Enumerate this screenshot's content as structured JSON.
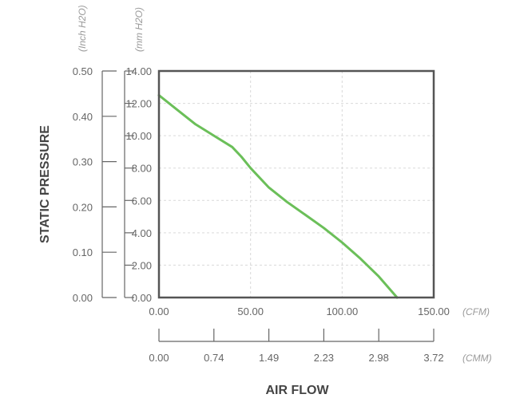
{
  "chart_data": {
    "type": "line",
    "title": "",
    "xlabel": "AIR FLOW",
    "ylabel": "STATIC PRESSURE",
    "x_primary_unit": "(CFM)",
    "x_secondary_unit": "(CMM)",
    "y_primary_unit": "(mm H2O)",
    "y_secondary_unit": "(Inch H2O)",
    "xlim": [
      0,
      150
    ],
    "ylim": [
      0,
      14
    ],
    "x_ticks": [
      "0.00",
      "50.00",
      "100.00",
      "150.00"
    ],
    "x_secondary_ticks": [
      "0.00",
      "0.74",
      "1.49",
      "2.23",
      "2.98",
      "3.72"
    ],
    "y_ticks": [
      "0.00",
      "2.00",
      "4.00",
      "6.00",
      "8.00",
      "10.00",
      "12.00",
      "14.00"
    ],
    "y_secondary_ticks": [
      "0.00",
      "0.10",
      "0.20",
      "0.30",
      "0.40",
      "0.50"
    ],
    "grid": true,
    "series": [
      {
        "color": "#6bbf59",
        "x": [
          0,
          10,
          20,
          30,
          40,
          45,
          50,
          60,
          70,
          80,
          90,
          100,
          110,
          120,
          130
        ],
        "y": [
          12.5,
          11.6,
          10.7,
          10.0,
          9.3,
          8.7,
          8.0,
          6.8,
          5.9,
          5.1,
          4.3,
          3.4,
          2.4,
          1.3,
          0.0
        ]
      }
    ]
  }
}
